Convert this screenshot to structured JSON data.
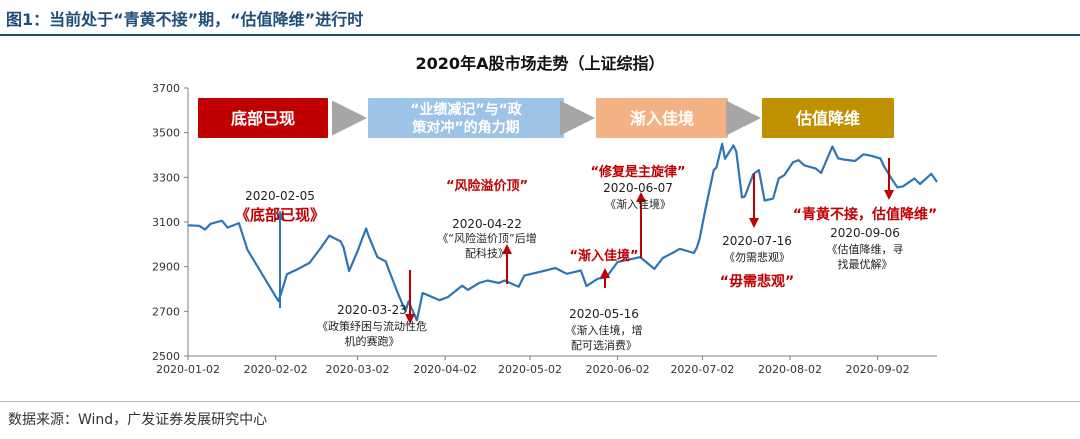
{
  "figure": {
    "title": "图1：当前处于“青黄不接”期，“估值降维”进行时",
    "source": "数据来源：Wind，广发证券发展研究中心"
  },
  "colors": {
    "line": "#2e75b6",
    "arrow_blue": "#2e75b6",
    "arrow_red": "#c00000",
    "annotation_red": "#c00000",
    "stage1": "#c00000",
    "stage2": "#9dc3e6",
    "stage3": "#f4b183",
    "stage4": "#bf9000",
    "stage_arrow": "#a6a6a6"
  },
  "stages": [
    {
      "label": "底部已现",
      "lines": [
        "底部已现"
      ],
      "icon": "stage-box"
    },
    {
      "label": "“业绩减记”与“政策对冲”的角力期",
      "lines": [
        "“业绩减记”与“政",
        "策对冲”的角力期"
      ],
      "icon": "stage-box"
    },
    {
      "label": "渐入佳境",
      "lines": [
        "渐入佳境"
      ],
      "icon": "stage-box"
    },
    {
      "label": "估值降维",
      "lines": [
        "估值降维"
      ],
      "icon": "stage-box"
    }
  ],
  "chart_data": {
    "type": "line",
    "title": "2020年A股市场走势（上证综指）",
    "xlabel": "",
    "ylabel": "",
    "ylim": [
      2500,
      3700
    ],
    "yticks": [
      2500,
      2700,
      2900,
      3100,
      3300,
      3500,
      3700
    ],
    "xlim": [
      "2020-01-02",
      "2020-09-23"
    ],
    "xticks": [
      "2020-01-02",
      "2020-02-02",
      "2020-03-02",
      "2020-04-02",
      "2020-05-02",
      "2020-06-02",
      "2020-07-02",
      "2020-08-02",
      "2020-09-02"
    ],
    "grid": false,
    "legend": "none",
    "series": [
      {
        "points": [
          [
            "2020-01-02",
            3085
          ],
          [
            "2020-01-06",
            3083
          ],
          [
            "2020-01-08",
            3066
          ],
          [
            "2020-01-10",
            3092
          ],
          [
            "2020-01-14",
            3106
          ],
          [
            "2020-01-16",
            3075
          ],
          [
            "2020-01-20",
            3095
          ],
          [
            "2020-01-23",
            2976
          ],
          [
            "2020-02-03",
            2746
          ],
          [
            "2020-02-04",
            2783
          ],
          [
            "2020-02-06",
            2866
          ],
          [
            "2020-02-10",
            2890
          ],
          [
            "2020-02-14",
            2917
          ],
          [
            "2020-02-18",
            2984
          ],
          [
            "2020-02-21",
            3039
          ],
          [
            "2020-02-25",
            3013
          ],
          [
            "2020-02-26",
            2987
          ],
          [
            "2020-02-28",
            2880
          ],
          [
            "2020-03-02",
            2970
          ],
          [
            "2020-03-05",
            3071
          ],
          [
            "2020-03-06",
            3034
          ],
          [
            "2020-03-09",
            2943
          ],
          [
            "2020-03-12",
            2923
          ],
          [
            "2020-03-13",
            2887
          ],
          [
            "2020-03-16",
            2789
          ],
          [
            "2020-03-18",
            2728
          ],
          [
            "2020-03-19",
            2702
          ],
          [
            "2020-03-20",
            2745
          ],
          [
            "2020-03-23",
            2660
          ],
          [
            "2020-03-25",
            2782
          ],
          [
            "2020-03-27",
            2772
          ],
          [
            "2020-03-31",
            2750
          ],
          [
            "2020-04-03",
            2764
          ],
          [
            "2020-04-08",
            2815
          ],
          [
            "2020-04-10",
            2796
          ],
          [
            "2020-04-14",
            2827
          ],
          [
            "2020-04-17",
            2838
          ],
          [
            "2020-04-21",
            2827
          ],
          [
            "2020-04-23",
            2838
          ],
          [
            "2020-04-28",
            2810
          ],
          [
            "2020-04-30",
            2860
          ],
          [
            "2020-05-06",
            2878
          ],
          [
            "2020-05-11",
            2894
          ],
          [
            "2020-05-15",
            2868
          ],
          [
            "2020-05-20",
            2883
          ],
          [
            "2020-05-22",
            2813
          ],
          [
            "2020-05-26",
            2846
          ],
          [
            "2020-05-29",
            2852
          ],
          [
            "2020-06-02",
            2921
          ],
          [
            "2020-06-05",
            2930
          ],
          [
            "2020-06-08",
            2937
          ],
          [
            "2020-06-10",
            2943
          ],
          [
            "2020-06-15",
            2890
          ],
          [
            "2020-06-18",
            2939
          ],
          [
            "2020-06-22",
            2965
          ],
          [
            "2020-06-24",
            2980
          ],
          [
            "2020-06-29",
            2961
          ],
          [
            "2020-06-30",
            2985
          ],
          [
            "2020-07-01",
            3025
          ],
          [
            "2020-07-03",
            3152
          ],
          [
            "2020-07-06",
            3332
          ],
          [
            "2020-07-07",
            3345
          ],
          [
            "2020-07-09",
            3450
          ],
          [
            "2020-07-10",
            3383
          ],
          [
            "2020-07-13",
            3443
          ],
          [
            "2020-07-14",
            3415
          ],
          [
            "2020-07-16",
            3210
          ],
          [
            "2020-07-17",
            3214
          ],
          [
            "2020-07-20",
            3314
          ],
          [
            "2020-07-22",
            3333
          ],
          [
            "2020-07-24",
            3196
          ],
          [
            "2020-07-27",
            3205
          ],
          [
            "2020-07-29",
            3295
          ],
          [
            "2020-07-31",
            3310
          ],
          [
            "2020-08-03",
            3367
          ],
          [
            "2020-08-05",
            3377
          ],
          [
            "2020-08-07",
            3354
          ],
          [
            "2020-08-11",
            3340
          ],
          [
            "2020-08-13",
            3320
          ],
          [
            "2020-08-17",
            3438
          ],
          [
            "2020-08-19",
            3385
          ],
          [
            "2020-08-21",
            3380
          ],
          [
            "2020-08-25",
            3373
          ],
          [
            "2020-08-28",
            3403
          ],
          [
            "2020-08-31",
            3396
          ],
          [
            "2020-09-03",
            3384
          ],
          [
            "2020-09-04",
            3355
          ],
          [
            "2020-09-07",
            3292
          ],
          [
            "2020-09-09",
            3255
          ],
          [
            "2020-09-11",
            3260
          ],
          [
            "2020-09-15",
            3295
          ],
          [
            "2020-09-17",
            3270
          ],
          [
            "2020-09-21",
            3316
          ],
          [
            "2020-09-23",
            3279
          ]
        ]
      }
    ],
    "annotations": [
      {
        "date": "2020-02-05",
        "headline": "《底部已现》",
        "note_lines": [],
        "direction": "up",
        "arrow_color": "blue"
      },
      {
        "date": "2020-03-23",
        "headline": "",
        "note_lines": [
          "《政策纾困与流动性危",
          "机的赛跑》"
        ],
        "direction": "down",
        "arrow_color": "red"
      },
      {
        "date": "2020-04-22",
        "headline": "“风险溢价顶”",
        "note_lines": [
          "《“风险溢价顶”后增",
          "配科技》"
        ],
        "direction": "up",
        "arrow_color": "red"
      },
      {
        "date": "2020-05-16",
        "headline": "“渐入佳境”",
        "note_lines": [
          "《渐入佳境，增",
          "配可选消费》"
        ],
        "direction": "down",
        "arrow_color": "red"
      },
      {
        "date": "2020-06-07",
        "headline": "“修复是主旋律”",
        "note_lines": [
          "《渐入佳境》"
        ],
        "direction": "up",
        "arrow_color": "red"
      },
      {
        "date": "2020-07-16",
        "headline": "“毋需悲观”",
        "note_lines": [
          "《勿需悲观》"
        ],
        "direction": "down",
        "arrow_color": "red"
      },
      {
        "date": "2020-09-06",
        "headline": "“青黄不接，估值降维”",
        "note_lines": [
          "《估值降维，寻",
          "找最优解》"
        ],
        "direction": "down",
        "arrow_color": "red"
      }
    ]
  }
}
